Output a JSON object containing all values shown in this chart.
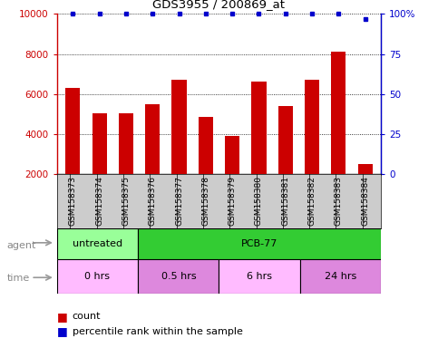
{
  "title": "GDS3955 / 200869_at",
  "samples": [
    "GSM158373",
    "GSM158374",
    "GSM158375",
    "GSM158376",
    "GSM158377",
    "GSM158378",
    "GSM158379",
    "GSM158380",
    "GSM158381",
    "GSM158382",
    "GSM158383",
    "GSM158384"
  ],
  "counts": [
    6300,
    5050,
    5050,
    5500,
    6700,
    4850,
    3900,
    6600,
    5400,
    6700,
    8100,
    2500
  ],
  "percentile": [
    100,
    100,
    100,
    100,
    100,
    100,
    100,
    100,
    100,
    100,
    100,
    97
  ],
  "ylim_left": [
    2000,
    10000
  ],
  "ylim_right": [
    0,
    100
  ],
  "yticks_left": [
    2000,
    4000,
    6000,
    8000,
    10000
  ],
  "yticks_right": [
    0,
    25,
    50,
    75,
    100
  ],
  "bar_color": "#cc0000",
  "dot_color": "#0000cc",
  "agent_labels": [
    {
      "text": "untreated",
      "start": 0,
      "end": 3,
      "color": "#99ff99"
    },
    {
      "text": "PCB-77",
      "start": 3,
      "end": 12,
      "color": "#33cc33"
    }
  ],
  "time_labels": [
    {
      "text": "0 hrs",
      "start": 0,
      "end": 3,
      "color": "#ffbbff"
    },
    {
      "text": "0.5 hrs",
      "start": 3,
      "end": 6,
      "color": "#dd88dd"
    },
    {
      "text": "6 hrs",
      "start": 6,
      "end": 9,
      "color": "#ffbbff"
    },
    {
      "text": "24 hrs",
      "start": 9,
      "end": 12,
      "color": "#dd88dd"
    }
  ],
  "background_color": "#ffffff",
  "tick_area_color": "#cccccc",
  "row_label_agent": "agent",
  "row_label_time": "time",
  "legend_count_color": "#cc0000",
  "legend_dot_color": "#0000cc"
}
